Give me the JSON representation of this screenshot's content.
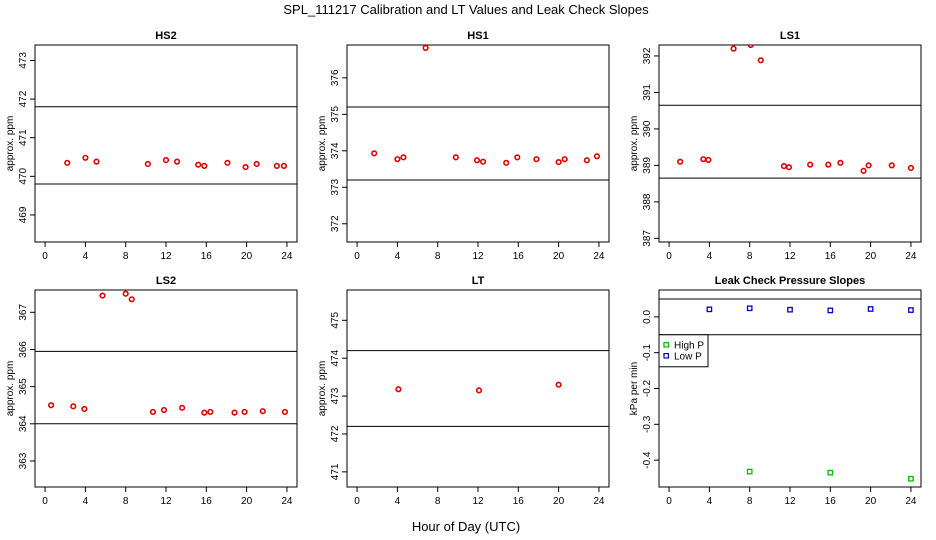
{
  "title": "SPL_111217  Calibration and LT Values and Leak Check Slopes",
  "xlabel": "Hour of Day (UTC)",
  "colors": {
    "calibration": "#e00000",
    "high_p": "#00bb00",
    "low_p": "#0000cc",
    "frame": "#000000"
  },
  "chart_data": [
    {
      "type": "scatter",
      "title": "HS2",
      "ylabel": "approx. ppm",
      "xlim": [
        -1,
        25
      ],
      "ylim": [
        468.3,
        473.4
      ],
      "xticks": [
        0,
        4,
        8,
        12,
        16,
        20,
        24
      ],
      "yticks": [
        469,
        470,
        471,
        472,
        473
      ],
      "hlines": [
        469.8,
        471.8
      ],
      "x": [
        2.2,
        4.0,
        5.1,
        10.2,
        12.0,
        13.1,
        15.2,
        15.8,
        18.1,
        19.9,
        21.0,
        23.0,
        23.7
      ],
      "y": [
        470.35,
        470.48,
        470.38,
        470.32,
        470.42,
        470.38,
        470.3,
        470.27,
        470.35,
        470.24,
        470.32,
        470.27,
        470.27
      ]
    },
    {
      "type": "scatter",
      "title": "HS1",
      "ylabel": "approx. ppm",
      "xlim": [
        -1,
        25
      ],
      "ylim": [
        371.5,
        376.9
      ],
      "xticks": [
        0,
        4,
        8,
        12,
        16,
        20,
        24
      ],
      "yticks": [
        372,
        373,
        374,
        375,
        376
      ],
      "hlines": [
        373.2,
        375.2
      ],
      "x": [
        1.7,
        4.0,
        4.6,
        6.8,
        9.8,
        11.9,
        12.5,
        14.8,
        15.9,
        17.8,
        20.0,
        20.6,
        22.8,
        23.8
      ],
      "y": [
        373.93,
        373.77,
        373.82,
        376.82,
        373.82,
        373.74,
        373.7,
        373.67,
        373.82,
        373.77,
        373.69,
        373.77,
        373.74,
        373.85
      ]
    },
    {
      "type": "scatter",
      "title": "LS1",
      "ylabel": "approx. ppm",
      "xlim": [
        -1,
        25
      ],
      "ylim": [
        386.9,
        392.3
      ],
      "xticks": [
        0,
        4,
        8,
        12,
        16,
        20,
        24
      ],
      "yticks": [
        387,
        388,
        389,
        390,
        391,
        392
      ],
      "hlines": [
        388.65,
        390.65
      ],
      "x": [
        1.1,
        3.4,
        3.9,
        6.4,
        8.1,
        9.1,
        11.4,
        11.9,
        14.0,
        15.8,
        17.0,
        19.3,
        19.8,
        22.1,
        24.0
      ],
      "y": [
        389.1,
        389.17,
        389.15,
        392.2,
        392.3,
        391.88,
        388.98,
        388.95,
        389.02,
        389.02,
        389.07,
        388.85,
        389.0,
        389.0,
        388.93
      ]
    },
    {
      "type": "scatter",
      "title": "LS2",
      "ylabel": "approx. ppm",
      "xlim": [
        -1,
        25
      ],
      "ylim": [
        362.3,
        367.6
      ],
      "xticks": [
        0,
        4,
        8,
        12,
        16,
        20,
        24
      ],
      "yticks": [
        363,
        364,
        365,
        366,
        367
      ],
      "hlines": [
        364.0,
        365.95
      ],
      "x": [
        0.6,
        2.8,
        3.9,
        5.7,
        8.0,
        8.6,
        10.7,
        11.8,
        13.6,
        15.8,
        16.4,
        18.8,
        19.8,
        21.6,
        23.8
      ],
      "y": [
        364.5,
        364.47,
        364.4,
        367.45,
        367.5,
        367.35,
        364.32,
        364.37,
        364.43,
        364.3,
        364.32,
        364.3,
        364.32,
        364.34,
        364.32
      ]
    },
    {
      "type": "scatter",
      "title": "LT",
      "ylabel": "approx. ppm",
      "xlim": [
        -1,
        25
      ],
      "ylim": [
        470.6,
        475.8
      ],
      "xticks": [
        0,
        4,
        8,
        12,
        16,
        20,
        24
      ],
      "yticks": [
        471,
        472,
        473,
        474,
        475
      ],
      "hlines": [
        472.2,
        474.2
      ],
      "x": [
        4.1,
        12.1,
        20.0
      ],
      "y": [
        473.18,
        473.15,
        473.3
      ]
    },
    {
      "type": "scatter",
      "title": "Leak Check Pressure Slopes",
      "ylabel": "kPa per min",
      "xlim": [
        -1,
        25
      ],
      "ylim": [
        -0.475,
        0.075
      ],
      "xticks": [
        0,
        4,
        8,
        12,
        16,
        20,
        24
      ],
      "yticks": [
        -0.4,
        -0.3,
        -0.2,
        -0.1,
        0.0
      ],
      "ytick_labels": [
        "-0.4",
        "-0.3",
        "-0.2",
        "-0.1",
        "0.0"
      ],
      "hlines": [
        0.05,
        -0.05
      ],
      "legend": {
        "position": "left",
        "entries": [
          "High P",
          "Low P"
        ]
      },
      "series": [
        {
          "name": "High P",
          "x": [
            8.0,
            16.0,
            24.0
          ],
          "y": [
            -0.432,
            -0.435,
            -0.452
          ]
        },
        {
          "name": "Low P",
          "x": [
            4.0,
            8.0,
            12.0,
            16.0,
            20.0,
            24.0
          ],
          "y": [
            0.021,
            0.024,
            0.02,
            0.018,
            0.022,
            0.019
          ]
        }
      ]
    }
  ]
}
